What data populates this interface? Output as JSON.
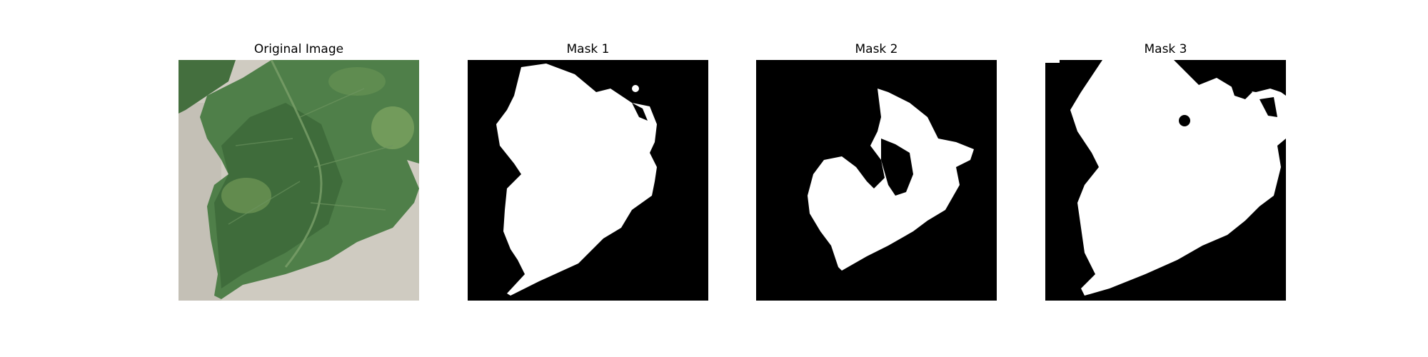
{
  "panels": [
    {
      "title": "Original Image",
      "kind": "photo"
    },
    {
      "title": "Mask 1",
      "kind": "mask"
    },
    {
      "title": "Mask 2",
      "kind": "mask"
    },
    {
      "title": "Mask 3",
      "kind": "mask"
    }
  ],
  "colors": {
    "mask_background": "#000000",
    "mask_foreground": "#ffffff",
    "leaf_dark": "#3d6b3a",
    "leaf_mid": "#4f7f49",
    "leaf_light": "#7fa55e",
    "paper": "#cfcbc1"
  }
}
